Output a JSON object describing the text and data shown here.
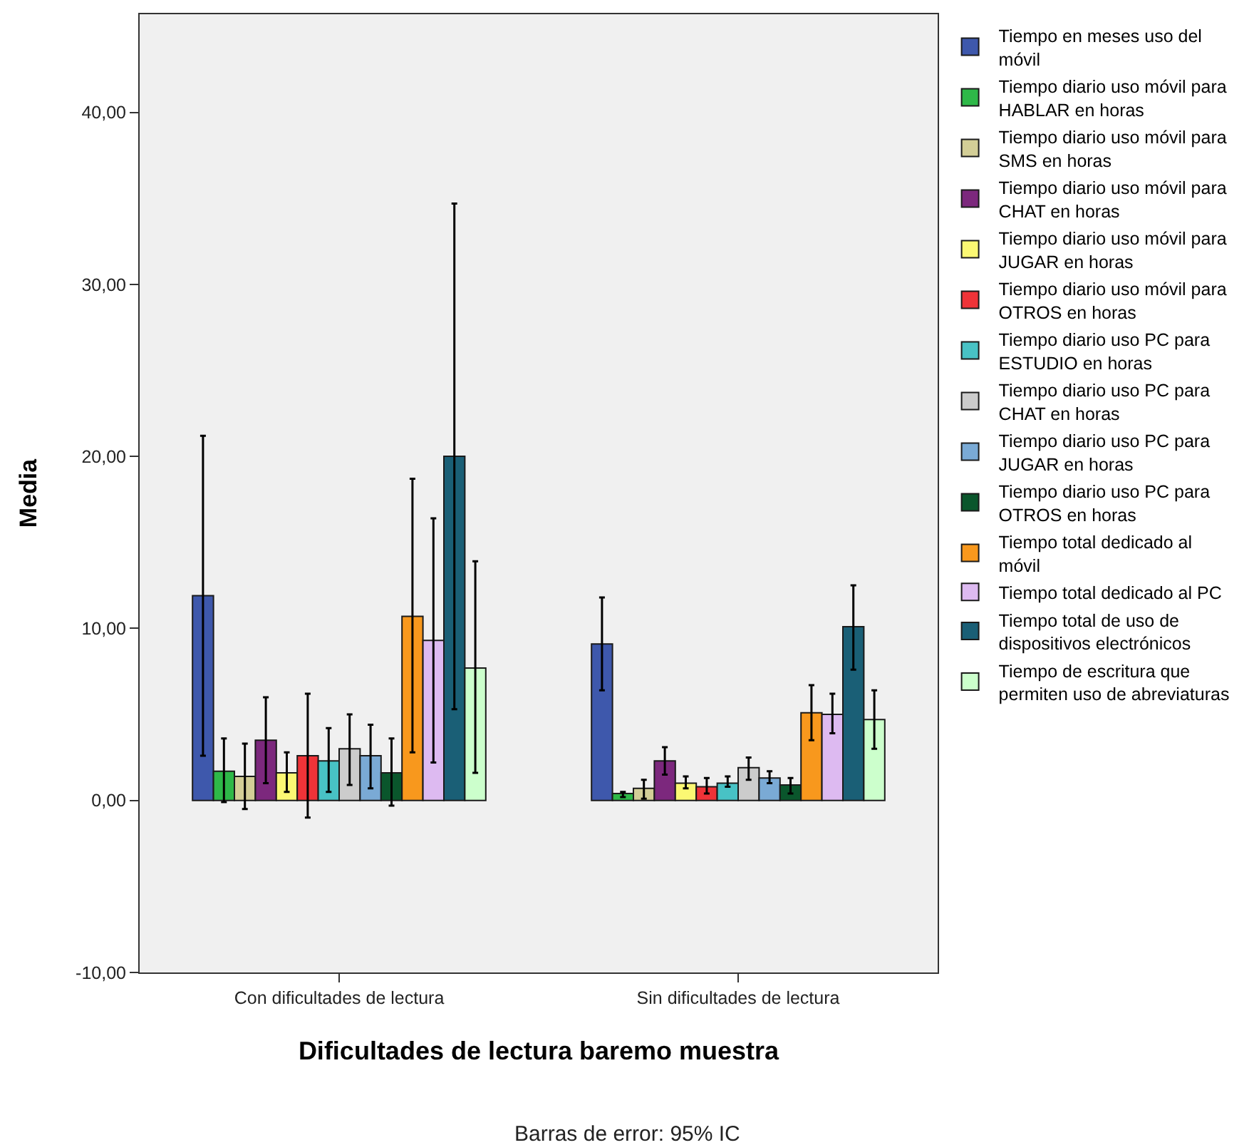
{
  "chart_data": {
    "type": "bar",
    "categories": [
      "Con dificultades de lectura",
      "Sin dificultades de lectura"
    ],
    "xlabel": "Dificultades de lectura baremo muestra",
    "ylabel": "Media",
    "annotations": [
      "Barras de error: 95% IC"
    ],
    "ylim": [
      -10,
      45.7
    ],
    "yticks": [
      {
        "value": -10,
        "label": "-10,00"
      },
      {
        "value": 0,
        "label": "0,00"
      },
      {
        "value": 10,
        "label": "10,00"
      },
      {
        "value": 20,
        "label": "20,00"
      },
      {
        "value": 30,
        "label": "30,00"
      },
      {
        "value": 40,
        "label": "40,00"
      }
    ],
    "grid": false,
    "legend": "top right",
    "series": [
      {
        "name": "Tiempo en meses uso del móvil",
        "color": "#3e58ac",
        "values": [
          11.9,
          9.1
        ],
        "errors": [
          [
            2.6,
            21.2
          ],
          [
            6.4,
            11.8
          ]
        ]
      },
      {
        "name": "Tiempo diario uso móvil para HABLAR en horas",
        "color": "#2eb848",
        "values": [
          1.7,
          0.4
        ],
        "errors": [
          [
            -0.1,
            3.6
          ],
          [
            0.2,
            0.5
          ]
        ]
      },
      {
        "name": "Tiempo diario uso móvil para SMS en horas",
        "color": "#d3ce97",
        "values": [
          1.4,
          0.7
        ],
        "errors": [
          [
            -0.5,
            3.3
          ],
          [
            0.1,
            1.2
          ]
        ]
      },
      {
        "name": "Tiempo diario uso móvil para CHAT en horas",
        "color": "#7c287d",
        "values": [
          3.5,
          2.3
        ],
        "errors": [
          [
            1.0,
            6.0
          ],
          [
            1.5,
            3.1
          ]
        ]
      },
      {
        "name": "Tiempo diario uso móvil para JUGAR en horas",
        "color": "#fbf873",
        "values": [
          1.6,
          1.0
        ],
        "errors": [
          [
            0.5,
            2.8
          ],
          [
            0.7,
            1.4
          ]
        ]
      },
      {
        "name": "Tiempo diario uso móvil para OTROS en horas",
        "color": "#ef3338",
        "values": [
          2.6,
          0.8
        ],
        "errors": [
          [
            -1.0,
            6.2
          ],
          [
            0.4,
            1.3
          ]
        ]
      },
      {
        "name": "Tiempo diario uso PC para ESTUDIO en horas",
        "color": "#48c2c5",
        "values": [
          2.3,
          1.0
        ],
        "errors": [
          [
            0.5,
            4.2
          ],
          [
            0.8,
            1.4
          ]
        ]
      },
      {
        "name": "Tiempo diario uso PC para CHAT en horas",
        "color": "#cccccc",
        "values": [
          3.0,
          1.9
        ],
        "errors": [
          [
            0.9,
            5.0
          ],
          [
            1.2,
            2.5
          ]
        ]
      },
      {
        "name": "Tiempo diario uso PC para JUGAR en horas",
        "color": "#7aaad5",
        "values": [
          2.6,
          1.3
        ],
        "errors": [
          [
            0.7,
            4.4
          ],
          [
            1.0,
            1.7
          ]
        ]
      },
      {
        "name": "Tiempo diario uso PC para OTROS en horas",
        "color": "#0a562c",
        "values": [
          1.6,
          0.9
        ],
        "errors": [
          [
            -0.3,
            3.6
          ],
          [
            0.4,
            1.3
          ]
        ]
      },
      {
        "name": "Tiempo total dedicado al móvil",
        "color": "#f8981d",
        "values": [
          10.7,
          5.1
        ],
        "errors": [
          [
            2.8,
            18.7
          ],
          [
            3.5,
            6.7
          ]
        ]
      },
      {
        "name": "Tiempo total dedicado al PC",
        "color": "#ddbaf1",
        "values": [
          9.3,
          5.0
        ],
        "errors": [
          [
            2.2,
            16.4
          ],
          [
            3.9,
            6.2
          ]
        ]
      },
      {
        "name": "Tiempo total de uso de dispositivos electrónicos",
        "color": "#1a5f76",
        "values": [
          20.0,
          10.1
        ],
        "errors": [
          [
            5.3,
            34.7
          ],
          [
            7.6,
            12.5
          ]
        ]
      },
      {
        "name": "Tiempo de escritura que permiten uso de abreviaturas",
        "color": "#ccffcc",
        "values": [
          7.7,
          4.7
        ],
        "errors": [
          [
            1.6,
            13.9
          ],
          [
            3.0,
            6.4
          ]
        ]
      }
    ]
  }
}
